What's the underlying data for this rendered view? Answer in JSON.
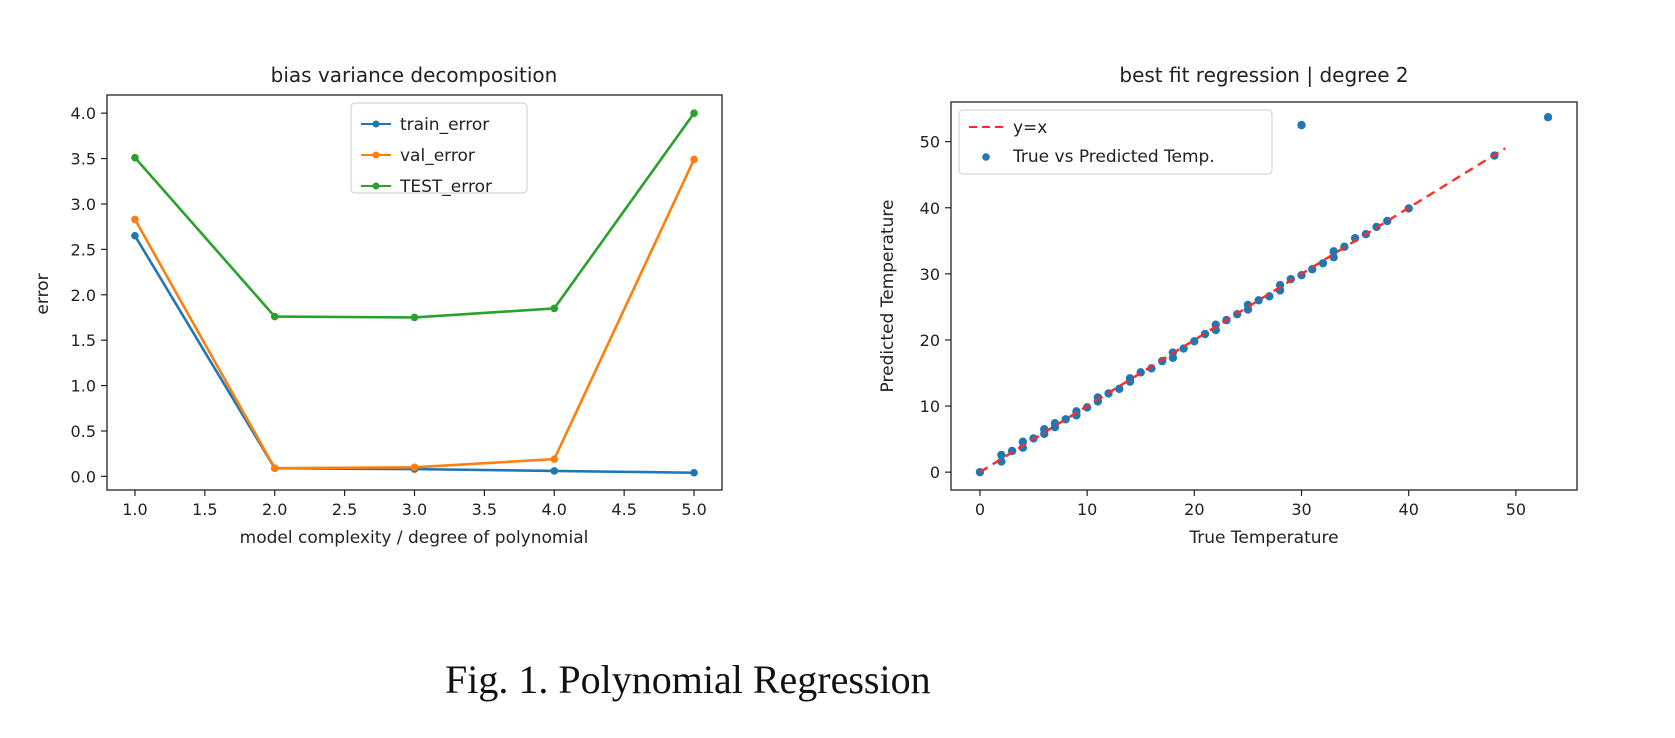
{
  "caption": "Fig. 1.  Polynomial Regression",
  "chart_data": [
    {
      "type": "line",
      "title": "bias variance decomposition",
      "xlabel": "model complexity / degree of polynomial",
      "ylabel": "error",
      "xlim": [
        0.8,
        5.2
      ],
      "ylim": [
        -0.15,
        4.2
      ],
      "xticks": [
        1.0,
        1.5,
        2.0,
        2.5,
        3.0,
        3.5,
        4.0,
        4.5,
        5.0
      ],
      "xtick_labels": [
        "1.0",
        "1.5",
        "2.0",
        "2.5",
        "3.0",
        "3.5",
        "4.0",
        "4.5",
        "5.0"
      ],
      "yticks": [
        0.0,
        0.5,
        1.0,
        1.5,
        2.0,
        2.5,
        3.0,
        3.5,
        4.0
      ],
      "ytick_labels": [
        "0.0",
        "0.5",
        "1.0",
        "1.5",
        "2.0",
        "2.5",
        "3.0",
        "3.5",
        "4.0"
      ],
      "grid": false,
      "legend": "top-center",
      "x": [
        1,
        2,
        3,
        4,
        5
      ],
      "series": [
        {
          "name": "train_error",
          "color": "#1f77b4",
          "values": [
            2.65,
            0.09,
            0.08,
            0.06,
            0.04
          ]
        },
        {
          "name": "val_error",
          "color": "#ff7f0e",
          "values": [
            2.83,
            0.09,
            0.1,
            0.19,
            3.49
          ]
        },
        {
          "name": "TEST_error",
          "color": "#2ca02c",
          "values": [
            3.51,
            1.76,
            1.75,
            1.85,
            4.0
          ]
        }
      ]
    },
    {
      "type": "scatter",
      "title": "best fit regression | degree 2",
      "xlabel": "True Temperature",
      "ylabel": "Predicted Temperature",
      "xlim": [
        -2.7,
        55.7
      ],
      "ylim": [
        -2.7,
        56.0
      ],
      "xticks": [
        0,
        10,
        20,
        30,
        40,
        50
      ],
      "xtick_labels": [
        "0",
        "10",
        "20",
        "30",
        "40",
        "50"
      ],
      "yticks": [
        0,
        10,
        20,
        30,
        40,
        50
      ],
      "ytick_labels": [
        "0",
        "10",
        "20",
        "30",
        "40",
        "50"
      ],
      "grid": false,
      "legend": "top-left",
      "line": {
        "name": "y=x",
        "color": "#ff2a2a",
        "style": "dashed",
        "x": [
          0,
          49
        ],
        "y": [
          0,
          49
        ]
      },
      "scatter": {
        "name": "True vs Predicted Temp.",
        "color": "#1f77b4",
        "points": [
          [
            0,
            0
          ],
          [
            2,
            1.6
          ],
          [
            2,
            2.6
          ],
          [
            3,
            3.2
          ],
          [
            4,
            3.7
          ],
          [
            4,
            4.6
          ],
          [
            5,
            5.1
          ],
          [
            6,
            5.8
          ],
          [
            6,
            6.5
          ],
          [
            7,
            6.8
          ],
          [
            7,
            7.4
          ],
          [
            8,
            8.0
          ],
          [
            9,
            8.6
          ],
          [
            9,
            9.2
          ],
          [
            10,
            9.8
          ],
          [
            11,
            10.7
          ],
          [
            11,
            11.3
          ],
          [
            12,
            11.9
          ],
          [
            13,
            12.6
          ],
          [
            14,
            13.7
          ],
          [
            14,
            14.2
          ],
          [
            15,
            15.1
          ],
          [
            16,
            15.7
          ],
          [
            17,
            16.8
          ],
          [
            18,
            17.3
          ],
          [
            18,
            18.1
          ],
          [
            19,
            18.7
          ],
          [
            20,
            19.8
          ],
          [
            21,
            20.9
          ],
          [
            22,
            21.5
          ],
          [
            22,
            22.3
          ],
          [
            23,
            23.0
          ],
          [
            24,
            23.9
          ],
          [
            25,
            24.6
          ],
          [
            25,
            25.3
          ],
          [
            26,
            26.0
          ],
          [
            27,
            26.6
          ],
          [
            28,
            27.5
          ],
          [
            28,
            28.3
          ],
          [
            29,
            29.2
          ],
          [
            30,
            29.8
          ],
          [
            31,
            30.7
          ],
          [
            32,
            31.6
          ],
          [
            33,
            32.5
          ],
          [
            33,
            33.4
          ],
          [
            34,
            34.1
          ],
          [
            35,
            35.4
          ],
          [
            36,
            36.0
          ],
          [
            37,
            37.1
          ],
          [
            38,
            38.0
          ],
          [
            40,
            39.9
          ],
          [
            48,
            47.9
          ],
          [
            30,
            52.5
          ],
          [
            53,
            53.7
          ]
        ]
      }
    }
  ]
}
